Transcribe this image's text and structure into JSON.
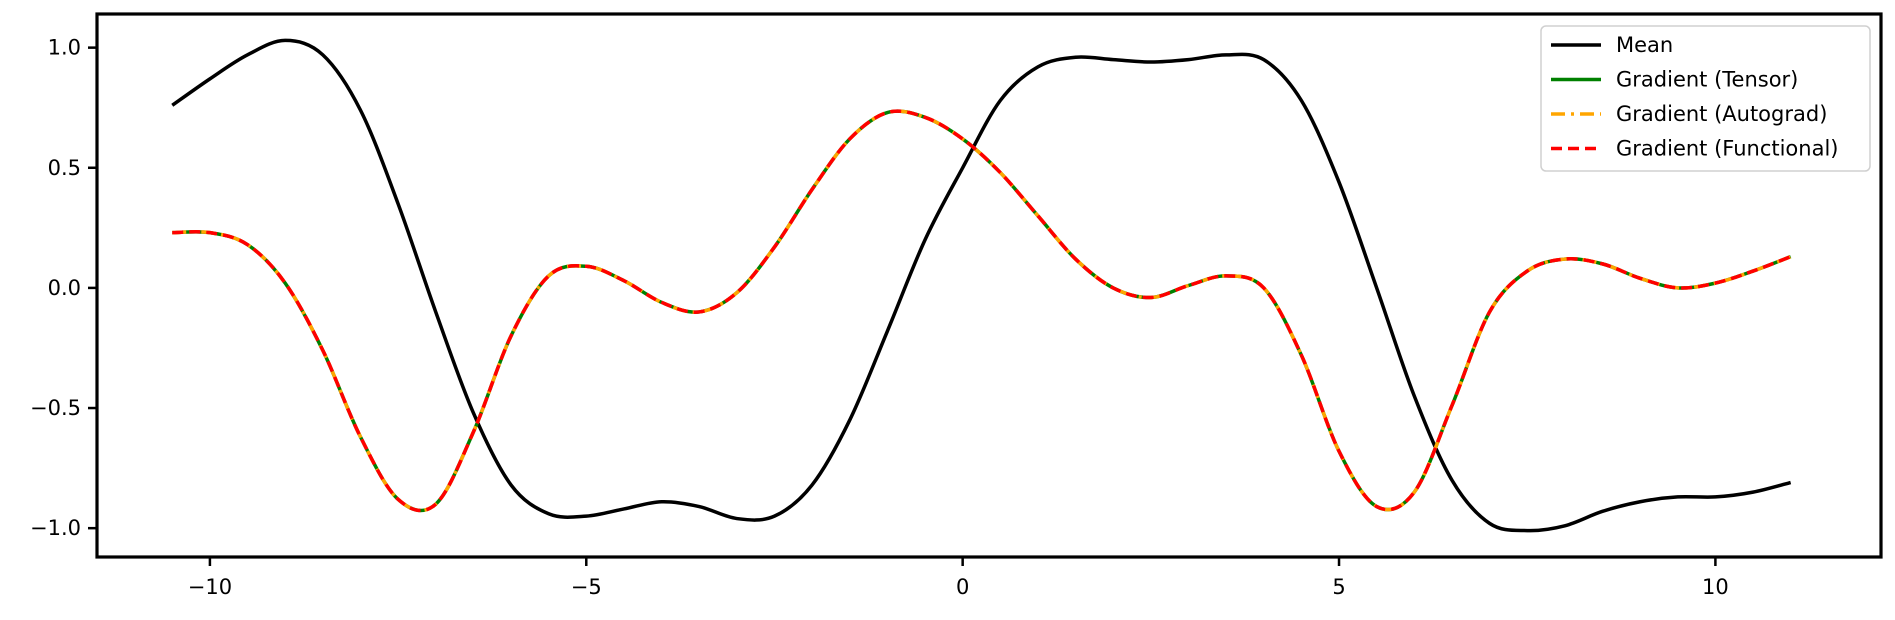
{
  "chart_data": {
    "type": "line",
    "title": "",
    "xlabel": "",
    "ylabel": "",
    "xlim": [
      -11.5,
      12.2
    ],
    "ylim": [
      -1.12,
      1.14
    ],
    "xticks": [
      -10,
      -5,
      0,
      5,
      10
    ],
    "xtick_labels": [
      "−10",
      "−5",
      "0",
      "5",
      "10"
    ],
    "yticks": [
      1.0,
      0.5,
      0.0,
      -0.5,
      -1.0
    ],
    "ytick_labels": [
      "1.0",
      "0.5",
      "0.0",
      "−0.5",
      "−1.0"
    ],
    "grid": false,
    "legend_position": "top-right",
    "series": [
      {
        "name": "Mean",
        "color": "#000000",
        "style": "solid",
        "x": [
          -10.5,
          -10.0,
          -9.5,
          -9.0,
          -8.5,
          -8.0,
          -7.5,
          -7.0,
          -6.5,
          -6.0,
          -5.5,
          -5.0,
          -4.5,
          -4.0,
          -3.5,
          -3.0,
          -2.5,
          -2.0,
          -1.5,
          -1.0,
          -0.5,
          0.0,
          0.5,
          1.0,
          1.5,
          2.0,
          2.5,
          3.0,
          3.5,
          4.0,
          4.5,
          5.0,
          5.5,
          6.0,
          6.5,
          7.0,
          7.5,
          8.0,
          8.5,
          9.0,
          9.5,
          10.0,
          10.5,
          11.0
        ],
        "y": [
          0.76,
          0.87,
          0.97,
          1.03,
          0.97,
          0.74,
          0.35,
          -0.1,
          -0.52,
          -0.82,
          -0.94,
          -0.95,
          -0.92,
          -0.89,
          -0.91,
          -0.96,
          -0.95,
          -0.82,
          -0.55,
          -0.18,
          0.2,
          0.5,
          0.78,
          0.92,
          0.96,
          0.95,
          0.94,
          0.95,
          0.97,
          0.95,
          0.78,
          0.44,
          0.0,
          -0.45,
          -0.8,
          -0.98,
          -1.01,
          -0.99,
          -0.93,
          -0.89,
          -0.87,
          -0.87,
          -0.85,
          -0.81
        ]
      },
      {
        "name": "Gradient (Tensor)",
        "color": "#008000",
        "style": "solid",
        "x": [
          -10.5,
          -10.0,
          -9.5,
          -9.0,
          -8.5,
          -8.0,
          -7.5,
          -7.0,
          -6.5,
          -6.0,
          -5.5,
          -5.0,
          -4.5,
          -4.0,
          -3.5,
          -3.0,
          -2.5,
          -2.0,
          -1.5,
          -1.0,
          -0.5,
          0.0,
          0.5,
          1.0,
          1.5,
          2.0,
          2.5,
          3.0,
          3.5,
          4.0,
          4.5,
          5.0,
          5.5,
          6.0,
          6.5,
          7.0,
          7.5,
          8.0,
          8.5,
          9.0,
          9.5,
          10.0,
          10.5,
          11.0
        ],
        "y": [
          0.23,
          0.23,
          0.18,
          0.02,
          -0.26,
          -0.62,
          -0.88,
          -0.9,
          -0.6,
          -0.2,
          0.05,
          0.09,
          0.03,
          -0.06,
          -0.1,
          -0.02,
          0.17,
          0.41,
          0.62,
          0.73,
          0.71,
          0.62,
          0.48,
          0.3,
          0.12,
          0.0,
          -0.04,
          0.01,
          0.05,
          0.0,
          -0.28,
          -0.68,
          -0.91,
          -0.85,
          -0.49,
          -0.1,
          0.07,
          0.12,
          0.1,
          0.04,
          0.0,
          0.02,
          0.07,
          0.13
        ]
      },
      {
        "name": "Gradient (Autograd)",
        "color": "#ffa500",
        "style": "dashdot",
        "x": [
          -10.5,
          -10.0,
          -9.5,
          -9.0,
          -8.5,
          -8.0,
          -7.5,
          -7.0,
          -6.5,
          -6.0,
          -5.5,
          -5.0,
          -4.5,
          -4.0,
          -3.5,
          -3.0,
          -2.5,
          -2.0,
          -1.5,
          -1.0,
          -0.5,
          0.0,
          0.5,
          1.0,
          1.5,
          2.0,
          2.5,
          3.0,
          3.5,
          4.0,
          4.5,
          5.0,
          5.5,
          6.0,
          6.5,
          7.0,
          7.5,
          8.0,
          8.5,
          9.0,
          9.5,
          10.0,
          10.5,
          11.0
        ],
        "y": [
          0.23,
          0.23,
          0.18,
          0.02,
          -0.26,
          -0.62,
          -0.88,
          -0.9,
          -0.6,
          -0.2,
          0.05,
          0.09,
          0.03,
          -0.06,
          -0.1,
          -0.02,
          0.17,
          0.41,
          0.62,
          0.73,
          0.71,
          0.62,
          0.48,
          0.3,
          0.12,
          0.0,
          -0.04,
          0.01,
          0.05,
          0.0,
          -0.28,
          -0.68,
          -0.91,
          -0.85,
          -0.49,
          -0.1,
          0.07,
          0.12,
          0.1,
          0.04,
          0.0,
          0.02,
          0.07,
          0.13
        ]
      },
      {
        "name": "Gradient (Functional)",
        "color": "#ff0000",
        "style": "dashed",
        "x": [
          -10.5,
          -10.0,
          -9.5,
          -9.0,
          -8.5,
          -8.0,
          -7.5,
          -7.0,
          -6.5,
          -6.0,
          -5.5,
          -5.0,
          -4.5,
          -4.0,
          -3.5,
          -3.0,
          -2.5,
          -2.0,
          -1.5,
          -1.0,
          -0.5,
          0.0,
          0.5,
          1.0,
          1.5,
          2.0,
          2.5,
          3.0,
          3.5,
          4.0,
          4.5,
          5.0,
          5.5,
          6.0,
          6.5,
          7.0,
          7.5,
          8.0,
          8.5,
          9.0,
          9.5,
          10.0,
          10.5,
          11.0
        ],
        "y": [
          0.23,
          0.23,
          0.18,
          0.02,
          -0.26,
          -0.62,
          -0.88,
          -0.9,
          -0.6,
          -0.2,
          0.05,
          0.09,
          0.03,
          -0.06,
          -0.1,
          -0.02,
          0.17,
          0.41,
          0.62,
          0.73,
          0.71,
          0.62,
          0.48,
          0.3,
          0.12,
          0.0,
          -0.04,
          0.01,
          0.05,
          0.0,
          -0.28,
          -0.68,
          -0.91,
          -0.85,
          -0.49,
          -0.1,
          0.07,
          0.12,
          0.1,
          0.04,
          0.0,
          0.02,
          0.07,
          0.13
        ]
      }
    ]
  }
}
